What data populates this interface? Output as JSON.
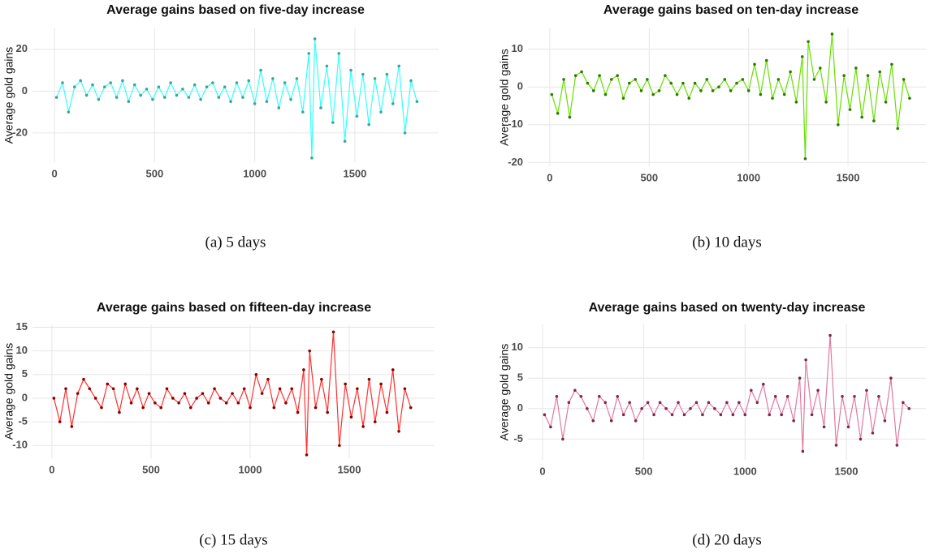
{
  "chart_data": [
    {
      "type": "line",
      "title": "Average gains based on five-day increase",
      "ylabel": "Average gold gains",
      "caption": "(a)  5 days",
      "x": [
        10,
        40,
        70,
        100,
        130,
        160,
        190,
        220,
        250,
        280,
        310,
        340,
        370,
        400,
        430,
        460,
        490,
        520,
        550,
        580,
        610,
        640,
        670,
        700,
        730,
        760,
        790,
        820,
        850,
        880,
        910,
        940,
        970,
        1000,
        1030,
        1060,
        1090,
        1120,
        1150,
        1180,
        1210,
        1240,
        1270,
        1285,
        1300,
        1330,
        1360,
        1390,
        1420,
        1450,
        1480,
        1510,
        1540,
        1570,
        1600,
        1630,
        1660,
        1690,
        1720,
        1750,
        1780,
        1810
      ],
      "values": [
        -3,
        4,
        -10,
        2,
        5,
        -2,
        3,
        -4,
        2,
        4,
        -3,
        5,
        -5,
        3,
        -2,
        1,
        -4,
        2,
        -3,
        4,
        -2,
        1,
        -3,
        3,
        -4,
        2,
        4,
        -3,
        2,
        -5,
        4,
        -3,
        5,
        -6,
        10,
        -5,
        6,
        -8,
        4,
        -4,
        6,
        -10,
        18,
        -32,
        25,
        -8,
        12,
        -15,
        18,
        -24,
        10,
        -12,
        8,
        -16,
        6,
        -10,
        8,
        -6,
        12,
        -20,
        5,
        -5
      ],
      "color": "#33ffff",
      "marker_color": "#3fa595",
      "xlim": [
        -110,
        1918
      ],
      "ylim": [
        -34,
        30
      ],
      "xticks": [
        0,
        500,
        1000,
        1500
      ],
      "yticks": [
        -20,
        0,
        20
      ],
      "grid": true
    },
    {
      "type": "line",
      "title": "Average gains based on ten-day increase",
      "ylabel": "Average gold gains",
      "caption": "(b)  10 days",
      "x": [
        10,
        40,
        70,
        100,
        130,
        160,
        190,
        220,
        250,
        280,
        310,
        340,
        370,
        400,
        430,
        460,
        490,
        520,
        550,
        580,
        610,
        640,
        670,
        700,
        730,
        760,
        790,
        820,
        850,
        880,
        910,
        940,
        970,
        1000,
        1030,
        1060,
        1090,
        1120,
        1150,
        1180,
        1210,
        1240,
        1270,
        1285,
        1300,
        1330,
        1360,
        1390,
        1420,
        1450,
        1480,
        1510,
        1540,
        1570,
        1600,
        1630,
        1660,
        1690,
        1720,
        1750,
        1780,
        1810
      ],
      "values": [
        -2,
        -7,
        2,
        -8,
        3,
        4,
        1,
        -1,
        3,
        -2,
        2,
        3,
        -3,
        1,
        2,
        -1,
        2,
        -2,
        -1,
        3,
        1,
        -2,
        1,
        -3,
        1,
        -1,
        2,
        -1,
        0,
        2,
        -1,
        1,
        2,
        -1,
        6,
        -2,
        7,
        -3,
        2,
        -2,
        4,
        -4,
        8,
        -19,
        12,
        2,
        5,
        -4,
        14,
        -10,
        3,
        -6,
        5,
        -8,
        3,
        -9,
        4,
        -4,
        6,
        -11,
        2,
        -3
      ],
      "color": "#66e000",
      "marker_color": "#2f7a00",
      "xlim": [
        -110,
        1892
      ],
      "ylim": [
        -21,
        15.5
      ],
      "xticks": [
        0,
        500,
        1000,
        1500
      ],
      "yticks": [
        -20,
        -10,
        0,
        10
      ],
      "grid": true
    },
    {
      "type": "line",
      "title": "Average gains based on fifteen-day increase",
      "ylabel": "Average gold gains",
      "caption": "(c)  15 days",
      "x": [
        10,
        40,
        70,
        100,
        130,
        160,
        190,
        220,
        250,
        280,
        310,
        340,
        370,
        400,
        430,
        460,
        490,
        520,
        550,
        580,
        610,
        640,
        670,
        700,
        730,
        760,
        790,
        820,
        850,
        880,
        910,
        940,
        970,
        1000,
        1030,
        1060,
        1090,
        1120,
        1150,
        1180,
        1210,
        1240,
        1270,
        1285,
        1300,
        1330,
        1360,
        1390,
        1420,
        1450,
        1480,
        1510,
        1540,
        1570,
        1600,
        1630,
        1660,
        1690,
        1720,
        1750,
        1780,
        1810
      ],
      "values": [
        0,
        -5,
        2,
        -6,
        1,
        4,
        2,
        0,
        -2,
        3,
        2,
        -3,
        3,
        -1,
        2,
        -2,
        1,
        -1,
        -2,
        2,
        0,
        -1,
        1,
        -2,
        0,
        1,
        -1,
        2,
        0,
        -1,
        1,
        -1,
        2,
        -2,
        5,
        1,
        4,
        -2,
        2,
        -1,
        2,
        -3,
        6,
        -12,
        10,
        -2,
        4,
        -3,
        14,
        -10,
        3,
        -4,
        2,
        -6,
        4,
        -5,
        3,
        -3,
        6,
        -7,
        2,
        -2
      ],
      "color": "#ff3030",
      "marker_color": "#8b0000",
      "xlim": [
        -98,
        1930
      ],
      "ylim": [
        -12.7,
        15.6
      ],
      "xticks": [
        0,
        500,
        1000,
        1500
      ],
      "yticks": [
        -10,
        -5,
        0,
        5,
        10,
        15
      ],
      "grid": true
    },
    {
      "type": "line",
      "title": "Average gains based on twenty-day increase",
      "ylabel": "Average gold gains",
      "caption": "(d)  20 days",
      "x": [
        10,
        40,
        70,
        100,
        130,
        160,
        190,
        220,
        250,
        280,
        310,
        340,
        370,
        400,
        430,
        460,
        490,
        520,
        550,
        580,
        610,
        640,
        670,
        700,
        730,
        760,
        790,
        820,
        850,
        880,
        910,
        940,
        970,
        1000,
        1030,
        1060,
        1090,
        1120,
        1150,
        1180,
        1210,
        1240,
        1270,
        1285,
        1300,
        1330,
        1360,
        1390,
        1420,
        1450,
        1480,
        1510,
        1540,
        1570,
        1600,
        1630,
        1660,
        1690,
        1720,
        1750,
        1780,
        1810
      ],
      "values": [
        -1,
        -3,
        2,
        -5,
        1,
        3,
        2,
        0,
        -2,
        2,
        1,
        -2,
        2,
        -1,
        1,
        -2,
        0,
        1,
        -1,
        1,
        0,
        -1,
        1,
        -1,
        0,
        1,
        -1,
        1,
        0,
        -1,
        1,
        -1,
        1,
        -1,
        3,
        1,
        4,
        -1,
        2,
        -1,
        2,
        -2,
        5,
        -7,
        8,
        -1,
        3,
        -3,
        12,
        -6,
        2,
        -3,
        2,
        -5,
        3,
        -4,
        2,
        -2,
        5,
        -6,
        1,
        0
      ],
      "color": "#e07aa0",
      "marker_color": "#7a2a4a",
      "xlim": [
        -72,
        1893
      ],
      "ylim": [
        -8.4,
        13.8
      ],
      "xticks": [
        0,
        500,
        1000,
        1500
      ],
      "yticks": [
        -5,
        0,
        5,
        10
      ],
      "grid": true
    }
  ]
}
